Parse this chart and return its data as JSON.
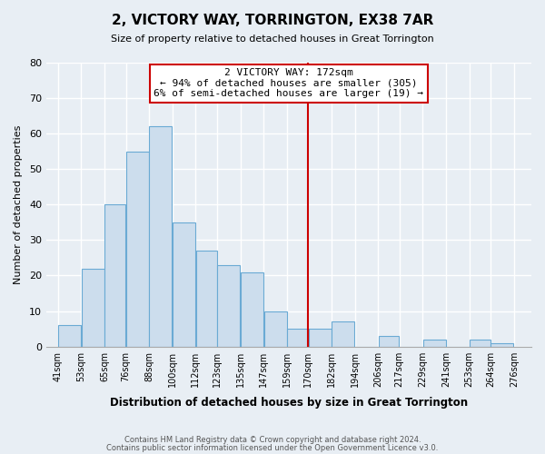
{
  "title": "2, VICTORY WAY, TORRINGTON, EX38 7AR",
  "subtitle": "Size of property relative to detached houses in Great Torrington",
  "xlabel": "Distribution of detached houses by size in Great Torrington",
  "ylabel": "Number of detached properties",
  "bar_left_edges": [
    41,
    53,
    65,
    76,
    88,
    100,
    112,
    123,
    135,
    147,
    159,
    170,
    182,
    194,
    206,
    217,
    229,
    241,
    253,
    264
  ],
  "bar_heights": [
    6,
    22,
    40,
    55,
    62,
    35,
    27,
    23,
    21,
    10,
    5,
    5,
    7,
    0,
    3,
    0,
    2,
    0,
    2,
    1
  ],
  "bar_widths": [
    12,
    12,
    11,
    12,
    12,
    12,
    11,
    12,
    12,
    12,
    11,
    12,
    12,
    12,
    11,
    12,
    12,
    12,
    11,
    12
  ],
  "tick_labels": [
    "41sqm",
    "53sqm",
    "65sqm",
    "76sqm",
    "88sqm",
    "100sqm",
    "112sqm",
    "123sqm",
    "135sqm",
    "147sqm",
    "159sqm",
    "170sqm",
    "182sqm",
    "194sqm",
    "206sqm",
    "217sqm",
    "229sqm",
    "241sqm",
    "253sqm",
    "264sqm",
    "276sqm"
  ],
  "tick_positions": [
    41,
    53,
    65,
    76,
    88,
    100,
    112,
    123,
    135,
    147,
    159,
    170,
    182,
    194,
    206,
    217,
    229,
    241,
    253,
    264,
    276
  ],
  "ylim": [
    0,
    80
  ],
  "yticks": [
    0,
    10,
    20,
    30,
    40,
    50,
    60,
    70,
    80
  ],
  "bar_color": "#ccdded",
  "bar_edge_color": "#6aaad4",
  "vline_x": 170,
  "vline_color": "#cc0000",
  "annotation_title": "2 VICTORY WAY: 172sqm",
  "annotation_line1": "← 94% of detached houses are smaller (305)",
  "annotation_line2": "6% of semi-detached houses are larger (19) →",
  "footer_line1": "Contains HM Land Registry data © Crown copyright and database right 2024.",
  "footer_line2": "Contains public sector information licensed under the Open Government Licence v3.0.",
  "background_color": "#e8eef4"
}
